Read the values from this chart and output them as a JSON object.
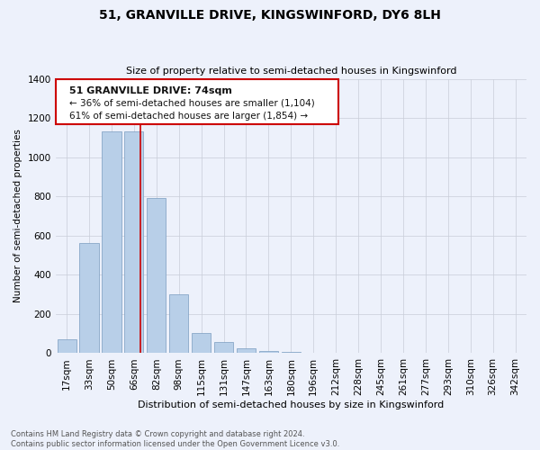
{
  "title": "51, GRANVILLE DRIVE, KINGSWINFORD, DY6 8LH",
  "subtitle": "Size of property relative to semi-detached houses in Kingswinford",
  "xlabel": "Distribution of semi-detached houses by size in Kingswinford",
  "ylabel": "Number of semi-detached properties",
  "footer_line1": "Contains HM Land Registry data © Crown copyright and database right 2024.",
  "footer_line2": "Contains public sector information licensed under the Open Government Licence v3.0.",
  "annotation_line1": "51 GRANVILLE DRIVE: 74sqm",
  "annotation_line2": "← 36% of semi-detached houses are smaller (1,104)",
  "annotation_line3": "61% of semi-detached houses are larger (1,854) →",
  "categories": [
    "17sqm",
    "33sqm",
    "50sqm",
    "66sqm",
    "82sqm",
    "98sqm",
    "115sqm",
    "131sqm",
    "147sqm",
    "163sqm",
    "180sqm",
    "196sqm",
    "212sqm",
    "228sqm",
    "245sqm",
    "261sqm",
    "277sqm",
    "293sqm",
    "310sqm",
    "326sqm",
    "342sqm"
  ],
  "values": [
    70,
    560,
    1130,
    1130,
    790,
    300,
    105,
    55,
    25,
    10,
    5,
    0,
    0,
    0,
    0,
    0,
    0,
    0,
    0,
    0,
    0
  ],
  "bar_color": "#b8cfe8",
  "marker_color": "#cc0000",
  "marker_index": 3,
  "background_color": "#edf1fb",
  "annotation_box_color": "#ffffff",
  "annotation_border_color": "#cc0000",
  "grid_color": "#c8cdd8",
  "ylim": [
    0,
    1400
  ],
  "yticks": [
    0,
    200,
    400,
    600,
    800,
    1000,
    1200,
    1400
  ]
}
